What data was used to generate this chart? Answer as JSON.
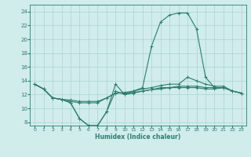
{
  "xlabel": "Humidex (Indice chaleur)",
  "x": [
    0,
    1,
    2,
    3,
    4,
    5,
    6,
    7,
    8,
    9,
    10,
    11,
    12,
    13,
    14,
    15,
    16,
    17,
    18,
    19,
    20,
    21,
    22,
    23
  ],
  "line1": [
    13.5,
    12.8,
    11.5,
    11.3,
    10.8,
    8.5,
    7.5,
    7.5,
    9.5,
    13.5,
    12.0,
    12.5,
    13.0,
    19.0,
    22.5,
    23.5,
    23.8,
    23.8,
    21.5,
    14.5,
    13.0,
    13.0,
    12.5,
    12.2
  ],
  "line2": [
    13.5,
    12.8,
    11.5,
    11.3,
    10.8,
    8.5,
    7.5,
    7.5,
    9.5,
    12.5,
    12.0,
    12.2,
    12.5,
    12.7,
    12.8,
    13.0,
    13.0,
    13.0,
    13.0,
    12.8,
    12.8,
    13.0,
    12.5,
    12.2
  ],
  "line3": [
    13.5,
    12.8,
    11.5,
    11.3,
    11.0,
    10.8,
    10.8,
    10.8,
    11.5,
    12.2,
    12.2,
    12.3,
    12.5,
    12.7,
    13.0,
    13.0,
    13.2,
    13.2,
    13.2,
    13.0,
    13.0,
    13.0,
    12.5,
    12.2
  ],
  "line4": [
    13.5,
    12.8,
    11.5,
    11.3,
    11.2,
    11.0,
    11.0,
    11.0,
    11.5,
    12.2,
    12.3,
    12.5,
    12.8,
    13.0,
    13.3,
    13.5,
    13.5,
    14.5,
    14.0,
    13.5,
    13.2,
    13.2,
    12.5,
    12.2
  ],
  "line_color": "#2e7d6e",
  "bg_color": "#d0eceb",
  "grid_color": "#a8d4d2",
  "ylim": [
    7.5,
    25.0
  ],
  "yticks": [
    8,
    10,
    12,
    14,
    16,
    18,
    20,
    22,
    24
  ],
  "xlim": [
    -0.5,
    23.5
  ],
  "xticks": [
    0,
    1,
    2,
    3,
    4,
    5,
    6,
    7,
    8,
    9,
    10,
    11,
    12,
    13,
    14,
    15,
    16,
    17,
    18,
    19,
    20,
    21,
    22,
    23
  ],
  "figsize": [
    3.2,
    2.0
  ],
  "dpi": 100
}
